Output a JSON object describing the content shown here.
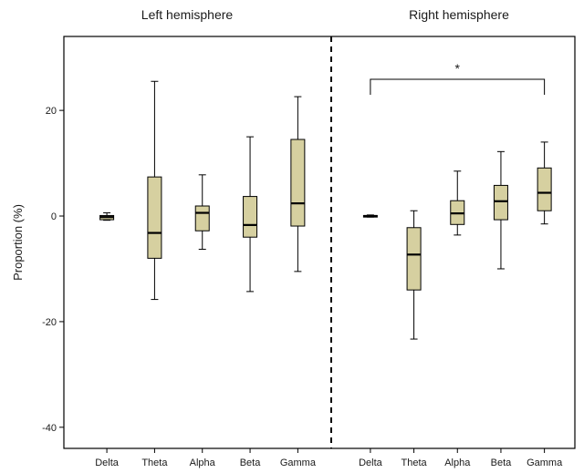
{
  "chart_data": {
    "type": "boxplot",
    "ylabel": "Proportion (%)",
    "ylim": [
      -44,
      34
    ],
    "yticks": [
      {
        "value": 20,
        "label": "20"
      },
      {
        "value": 0,
        "label": "0"
      },
      {
        "value": -20,
        "label": "-20"
      },
      {
        "value": -40,
        "label": "-40"
      }
    ],
    "box_color": "#d6d0a0",
    "panels": [
      {
        "title": "Left hemisphere",
        "categories": [
          "Delta",
          "Theta",
          "Alpha",
          "Beta",
          "Gamma"
        ],
        "boxes": [
          {
            "min": -0.8,
            "q1": -0.7,
            "median": -0.2,
            "q3": 0.1,
            "max": 0.6
          },
          {
            "min": -15.8,
            "q1": -8.0,
            "median": -3.2,
            "q3": 7.4,
            "max": 25.5
          },
          {
            "min": -6.3,
            "q1": -2.8,
            "median": 0.6,
            "q3": 1.9,
            "max": 7.8
          },
          {
            "min": -14.3,
            "q1": -4.0,
            "median": -1.7,
            "q3": 3.7,
            "max": 15.0
          },
          {
            "min": -10.5,
            "q1": -1.9,
            "median": 2.4,
            "q3": 14.5,
            "max": 22.6
          }
        ]
      },
      {
        "title": "Right hemisphere",
        "categories": [
          "Delta",
          "Theta",
          "Alpha",
          "Beta",
          "Gamma"
        ],
        "boxes": [
          {
            "min": -0.2,
            "q1": -0.2,
            "median": 0.0,
            "q3": 0.1,
            "max": 0.2
          },
          {
            "min": -23.3,
            "q1": -14.0,
            "median": -7.3,
            "q3": -2.2,
            "max": 1.0
          },
          {
            "min": -3.6,
            "q1": -1.6,
            "median": 0.5,
            "q3": 2.9,
            "max": 8.5
          },
          {
            "min": -10.0,
            "q1": -0.7,
            "median": 2.8,
            "q3": 5.8,
            "max": 12.2
          },
          {
            "min": -1.5,
            "q1": 1.0,
            "median": 4.4,
            "q3": 9.1,
            "max": 14.0
          }
        ]
      }
    ],
    "annotations": [
      {
        "text": "*",
        "panel": 1,
        "from_category": "Delta",
        "to_category": "Gamma"
      }
    ]
  }
}
